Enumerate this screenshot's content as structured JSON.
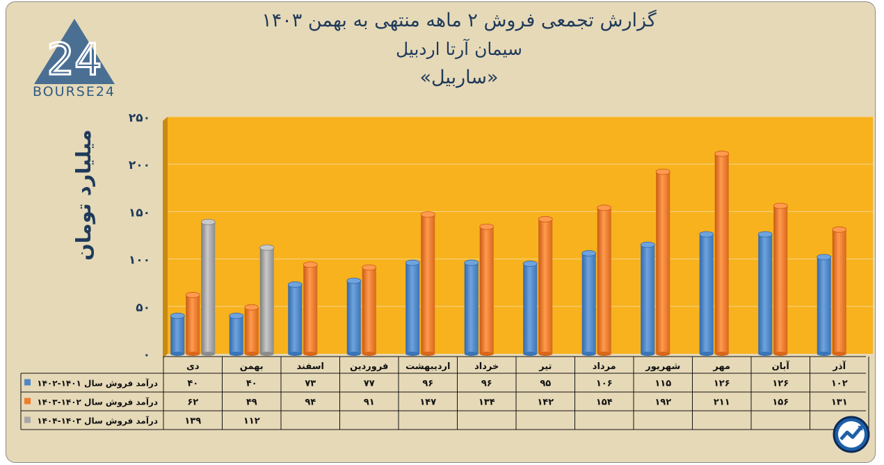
{
  "header": {
    "title_line1": "گزارش تجمعی فروش ۲ ماهه منتهی به بهمن ۱۴۰۳",
    "title_line2": "سیمان آرتا اردبیل",
    "title_line3": "«ساربیل»"
  },
  "logo": {
    "number": "24",
    "text": "BOURSE24"
  },
  "colors": {
    "panel_bg": "#e6d9b8",
    "plot_bg": "#f7b21e",
    "title": "#1f3a5a",
    "series1": "#4f86c6",
    "series2": "#f07c2a",
    "series3": "#a6a6a6"
  },
  "chart_data": {
    "type": "bar",
    "ylabel": "میلیارد تومان",
    "ylim": [
      0,
      250
    ],
    "yticks": [
      "۰",
      "۵۰",
      "۱۰۰",
      "۱۵۰",
      "۲۰۰",
      "۲۵۰"
    ],
    "grid": true,
    "categories": [
      "دی",
      "بهمن",
      "اسفند",
      "فروردین",
      "اردیبهشت",
      "خرداد",
      "تیر",
      "مرداد",
      "شهریور",
      "مهر",
      "آبان",
      "آذر"
    ],
    "series": [
      {
        "name": "درآمد فروش سال ۱۴۰۱-۱۴۰۲",
        "color": "#4f86c6",
        "values": [
          40,
          40,
          73,
          77,
          96,
          96,
          95,
          106,
          115,
          126,
          126,
          102
        ],
        "labels": [
          "۴۰",
          "۴۰",
          "۷۳",
          "۷۷",
          "۹۶",
          "۹۶",
          "۹۵",
          "۱۰۶",
          "۱۱۵",
          "۱۲۶",
          "۱۲۶",
          "۱۰۲"
        ]
      },
      {
        "name": "درآمد فروش سال ۱۴۰۲-۱۴۰۳",
        "color": "#f07c2a",
        "values": [
          62,
          49,
          94,
          91,
          147,
          134,
          142,
          154,
          192,
          211,
          156,
          131
        ],
        "labels": [
          "۶۲",
          "۴۹",
          "۹۴",
          "۹۱",
          "۱۴۷",
          "۱۳۴",
          "۱۴۲",
          "۱۵۴",
          "۱۹۲",
          "۲۱۱",
          "۱۵۶",
          "۱۳۱"
        ]
      },
      {
        "name": "درآمد فروش سال ۱۴۰۳-۱۴۰۴",
        "color": "#a6a6a6",
        "values": [
          139,
          112,
          null,
          null,
          null,
          null,
          null,
          null,
          null,
          null,
          null,
          null
        ],
        "labels": [
          "۱۳۹",
          "۱۱۲",
          "",
          "",
          "",
          "",
          "",
          "",
          "",
          "",
          "",
          ""
        ]
      }
    ]
  }
}
